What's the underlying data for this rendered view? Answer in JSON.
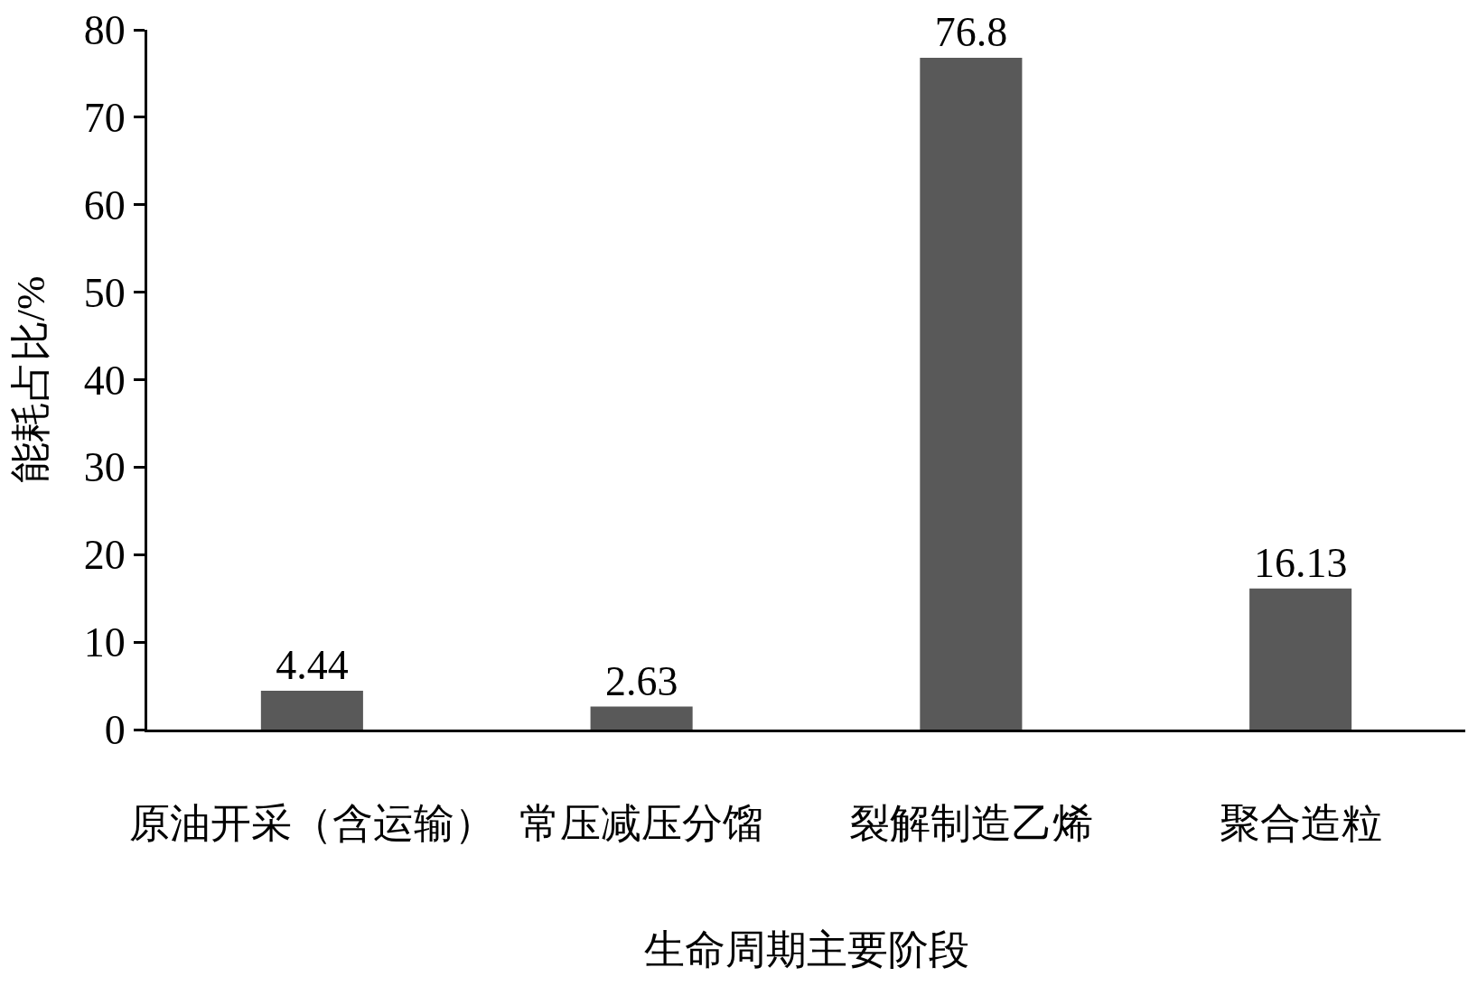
{
  "chart_data": {
    "type": "bar",
    "xlabel": "生命周期主要阶段",
    "ylabel": "能耗占比/%",
    "categories": [
      "原油开采（含运输）",
      "常压减压分馏",
      "裂解制造乙烯",
      "聚合造粒"
    ],
    "values": [
      4.44,
      2.63,
      76.8,
      16.13
    ],
    "color": "#595959",
    "ylim": [
      0,
      80
    ],
    "yticks": [
      0,
      10,
      20,
      30,
      40,
      50,
      60,
      70,
      80
    ],
    "data_labels": true
  }
}
